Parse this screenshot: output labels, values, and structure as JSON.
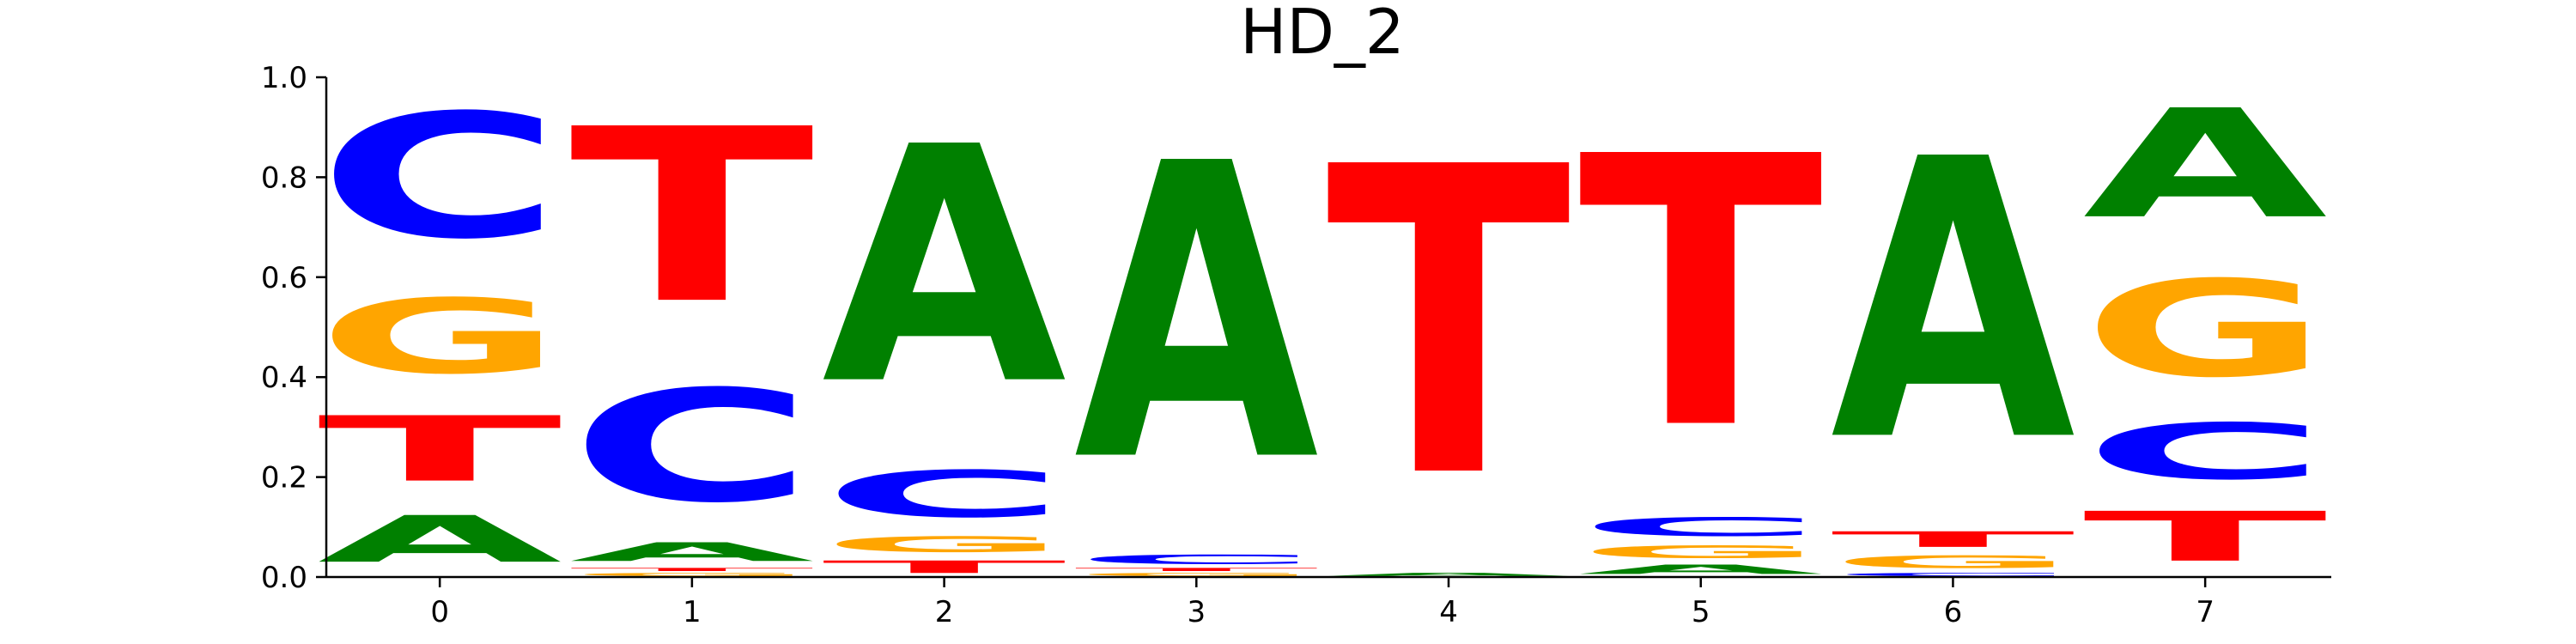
{
  "chart_data": {
    "type": "sequence-logo",
    "title": "HD_2",
    "xlabel": "",
    "ylabel": "",
    "ylim": [
      0,
      1.0
    ],
    "yticks": [
      "0.0",
      "0.2",
      "0.4",
      "0.6",
      "0.8",
      "1.0"
    ],
    "xticks": [
      "0",
      "1",
      "2",
      "3",
      "4",
      "5",
      "6",
      "7"
    ],
    "grid": false,
    "colors": {
      "A": "#008000",
      "C": "#0000ff",
      "G": "#ffa500",
      "T": "#ff0000"
    },
    "positions": [
      {
        "x": "0",
        "stack": [
          {
            "letter": "A",
            "value": 0.15
          },
          {
            "letter": "T",
            "value": 0.21
          },
          {
            "letter": "G",
            "value": 0.24
          },
          {
            "letter": "C",
            "value": 0.4
          }
        ]
      },
      {
        "x": "1",
        "stack": [
          {
            "letter": "G",
            "value": 0.01
          },
          {
            "letter": "T",
            "value": 0.01
          },
          {
            "letter": "A",
            "value": 0.06
          },
          {
            "letter": "C",
            "value": 0.36
          },
          {
            "letter": "T",
            "value": 0.56
          }
        ]
      },
      {
        "x": "2",
        "stack": [
          {
            "letter": "T",
            "value": 0.04
          },
          {
            "letter": "G",
            "value": 0.05
          },
          {
            "letter": "C",
            "value": 0.15
          },
          {
            "letter": "A",
            "value": 0.76
          }
        ]
      },
      {
        "x": "3",
        "stack": [
          {
            "letter": "G",
            "value": 0.01
          },
          {
            "letter": "T",
            "value": 0.01
          },
          {
            "letter": "C",
            "value": 0.03
          },
          {
            "letter": "A",
            "value": 0.95
          }
        ]
      },
      {
        "x": "4",
        "stack": [
          {
            "letter": "A",
            "value": 0.01
          },
          {
            "letter": "T",
            "value": 0.99
          }
        ]
      },
      {
        "x": "5",
        "stack": [
          {
            "letter": "A",
            "value": 0.03
          },
          {
            "letter": "G",
            "value": 0.04
          },
          {
            "letter": "C",
            "value": 0.06
          },
          {
            "letter": "T",
            "value": 0.87
          }
        ]
      },
      {
        "x": "6",
        "stack": [
          {
            "letter": "C",
            "value": 0.01
          },
          {
            "letter": "G",
            "value": 0.04
          },
          {
            "letter": "T",
            "value": 0.05
          },
          {
            "letter": "A",
            "value": 0.9
          }
        ]
      },
      {
        "x": "7",
        "stack": [
          {
            "letter": "T",
            "value": 0.16
          },
          {
            "letter": "C",
            "value": 0.18
          },
          {
            "letter": "G",
            "value": 0.31
          },
          {
            "letter": "A",
            "value": 0.35
          }
        ]
      }
    ]
  }
}
